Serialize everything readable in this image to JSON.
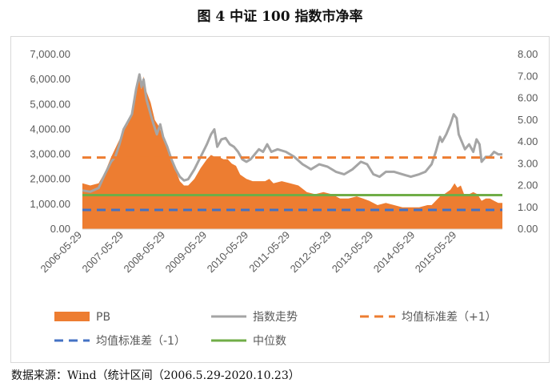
{
  "title": "图 4  中证 100 指数市净率",
  "source": "数据来源：Wind（统计区间（2006.5.29-2020.10.23）",
  "chart_data": {
    "type": "line",
    "x_tick_labels": [
      "2006-05-29",
      "2007-05-29",
      "2008-05-29",
      "2009-05-29",
      "2010-05-29",
      "2011-05-29",
      "2012-05-29",
      "2013-05-29",
      "2014-05-29",
      "2015-05-29"
    ],
    "x_range": [
      2006.41,
      2016.5
    ],
    "y_left": {
      "range": [
        0,
        7000
      ],
      "ticks": [
        "0.00",
        "1,000.00",
        "2,000.00",
        "3,000.00",
        "4,000.00",
        "5,000.00",
        "6,000.00",
        "7,000.00"
      ]
    },
    "y_right": {
      "range": [
        0,
        8
      ],
      "ticks": [
        "0.00",
        "1.00",
        "2.00",
        "3.00",
        "4.00",
        "5.00",
        "6.00",
        "7.00",
        "8.00"
      ]
    },
    "grid": false,
    "legend_position": "bottom",
    "series": [
      {
        "name": "PB",
        "type": "area",
        "axis": "right",
        "color": "#ED7D31",
        "points": [
          [
            2006.41,
            2.1
          ],
          [
            2006.6,
            2.0
          ],
          [
            2006.8,
            2.1
          ],
          [
            2006.95,
            2.6
          ],
          [
            2007.1,
            3.3
          ],
          [
            2007.25,
            3.9
          ],
          [
            2007.4,
            4.5
          ],
          [
            2007.5,
            4.8
          ],
          [
            2007.6,
            5.4
          ],
          [
            2007.7,
            6.3
          ],
          [
            2007.78,
            7.1
          ],
          [
            2007.83,
            6.4
          ],
          [
            2007.88,
            7.0
          ],
          [
            2007.95,
            6.3
          ],
          [
            2008.05,
            5.8
          ],
          [
            2008.15,
            5.0
          ],
          [
            2008.25,
            4.7
          ],
          [
            2008.35,
            4.2
          ],
          [
            2008.45,
            3.8
          ],
          [
            2008.55,
            3.2
          ],
          [
            2008.65,
            2.7
          ],
          [
            2008.75,
            2.2
          ],
          [
            2008.85,
            2.0
          ],
          [
            2008.95,
            2.0
          ],
          [
            2009.1,
            2.3
          ],
          [
            2009.25,
            2.8
          ],
          [
            2009.4,
            3.2
          ],
          [
            2009.5,
            3.4
          ],
          [
            2009.6,
            3.3
          ],
          [
            2009.7,
            3.3
          ],
          [
            2009.8,
            3.2
          ],
          [
            2009.9,
            3.2
          ],
          [
            2010.0,
            3.0
          ],
          [
            2010.1,
            2.9
          ],
          [
            2010.2,
            2.5
          ],
          [
            2010.35,
            2.3
          ],
          [
            2010.5,
            2.2
          ],
          [
            2010.65,
            2.2
          ],
          [
            2010.8,
            2.2
          ],
          [
            2010.9,
            2.3
          ],
          [
            2011.0,
            2.1
          ],
          [
            2011.2,
            2.2
          ],
          [
            2011.4,
            2.1
          ],
          [
            2011.6,
            2.0
          ],
          [
            2011.8,
            1.7
          ],
          [
            2012.0,
            1.6
          ],
          [
            2012.2,
            1.7
          ],
          [
            2012.4,
            1.6
          ],
          [
            2012.6,
            1.4
          ],
          [
            2012.8,
            1.4
          ],
          [
            2013.0,
            1.5
          ],
          [
            2013.15,
            1.4
          ],
          [
            2013.3,
            1.3
          ],
          [
            2013.5,
            1.1
          ],
          [
            2013.7,
            1.2
          ],
          [
            2013.9,
            1.1
          ],
          [
            2014.1,
            1.0
          ],
          [
            2014.3,
            1.0
          ],
          [
            2014.5,
            1.0
          ],
          [
            2014.7,
            1.1
          ],
          [
            2014.8,
            1.1
          ],
          [
            2014.9,
            1.3
          ],
          [
            2015.0,
            1.5
          ],
          [
            2015.1,
            1.6
          ],
          [
            2015.25,
            1.8
          ],
          [
            2015.35,
            2.1
          ],
          [
            2015.42,
            1.9
          ],
          [
            2015.5,
            2.0
          ],
          [
            2015.58,
            1.6
          ],
          [
            2015.7,
            1.6
          ],
          [
            2015.8,
            1.7
          ],
          [
            2015.9,
            1.6
          ],
          [
            2016.0,
            1.3
          ],
          [
            2016.1,
            1.4
          ],
          [
            2016.2,
            1.4
          ],
          [
            2016.3,
            1.3
          ],
          [
            2016.4,
            1.2
          ],
          [
            2016.5,
            1.2
          ]
        ]
      },
      {
        "name": "指数走势",
        "type": "line",
        "axis": "left",
        "color": "#A5A5A5",
        "points": [
          [
            2006.41,
            1550
          ],
          [
            2006.6,
            1500
          ],
          [
            2006.8,
            1650
          ],
          [
            2006.95,
            2200
          ],
          [
            2007.1,
            2700
          ],
          [
            2007.2,
            2900
          ],
          [
            2007.3,
            3400
          ],
          [
            2007.4,
            4000
          ],
          [
            2007.5,
            4300
          ],
          [
            2007.6,
            4600
          ],
          [
            2007.7,
            5600
          ],
          [
            2007.78,
            6200
          ],
          [
            2007.83,
            5700
          ],
          [
            2007.88,
            6000
          ],
          [
            2007.95,
            5200
          ],
          [
            2008.05,
            4600
          ],
          [
            2008.12,
            4200
          ],
          [
            2008.2,
            3800
          ],
          [
            2008.28,
            4200
          ],
          [
            2008.35,
            3700
          ],
          [
            2008.45,
            3300
          ],
          [
            2008.55,
            2800
          ],
          [
            2008.65,
            2400
          ],
          [
            2008.75,
            2100
          ],
          [
            2008.85,
            1950
          ],
          [
            2008.95,
            2000
          ],
          [
            2009.1,
            2400
          ],
          [
            2009.25,
            2900
          ],
          [
            2009.4,
            3400
          ],
          [
            2009.5,
            3800
          ],
          [
            2009.58,
            4000
          ],
          [
            2009.65,
            3300
          ],
          [
            2009.75,
            3600
          ],
          [
            2009.85,
            3650
          ],
          [
            2009.95,
            3400
          ],
          [
            2010.05,
            3300
          ],
          [
            2010.15,
            3100
          ],
          [
            2010.25,
            2800
          ],
          [
            2010.35,
            2700
          ],
          [
            2010.45,
            2800
          ],
          [
            2010.55,
            3000
          ],
          [
            2010.65,
            3200
          ],
          [
            2010.75,
            3100
          ],
          [
            2010.85,
            3400
          ],
          [
            2010.95,
            3100
          ],
          [
            2011.1,
            3200
          ],
          [
            2011.3,
            3100
          ],
          [
            2011.5,
            2900
          ],
          [
            2011.7,
            2600
          ],
          [
            2011.9,
            2400
          ],
          [
            2012.1,
            2600
          ],
          [
            2012.3,
            2500
          ],
          [
            2012.5,
            2300
          ],
          [
            2012.7,
            2200
          ],
          [
            2012.9,
            2400
          ],
          [
            2013.1,
            2700
          ],
          [
            2013.25,
            2600
          ],
          [
            2013.4,
            2200
          ],
          [
            2013.55,
            2100
          ],
          [
            2013.7,
            2300
          ],
          [
            2013.9,
            2300
          ],
          [
            2014.1,
            2200
          ],
          [
            2014.3,
            2100
          ],
          [
            2014.5,
            2200
          ],
          [
            2014.65,
            2300
          ],
          [
            2014.8,
            2600
          ],
          [
            2014.9,
            3100
          ],
          [
            2015.0,
            3700
          ],
          [
            2015.05,
            3500
          ],
          [
            2015.15,
            3800
          ],
          [
            2015.25,
            4200
          ],
          [
            2015.33,
            4600
          ],
          [
            2015.4,
            4450
          ],
          [
            2015.45,
            3800
          ],
          [
            2015.55,
            3400
          ],
          [
            2015.6,
            3200
          ],
          [
            2015.7,
            3400
          ],
          [
            2015.8,
            3100
          ],
          [
            2015.88,
            3600
          ],
          [
            2015.95,
            3400
          ],
          [
            2016.0,
            2700
          ],
          [
            2016.1,
            2900
          ],
          [
            2016.2,
            2900
          ],
          [
            2016.3,
            3100
          ],
          [
            2016.4,
            3000
          ],
          [
            2016.5,
            3000
          ]
        ]
      },
      {
        "name": "均值标准差（+1）",
        "type": "hline",
        "axis": "right",
        "value": 3.28,
        "color": "#ED7D31",
        "dash": true
      },
      {
        "name": "均值标准差（-1）",
        "type": "hline",
        "axis": "right",
        "value": 0.88,
        "color": "#4472C4",
        "dash": true
      },
      {
        "name": "中位数",
        "type": "hline",
        "axis": "right",
        "value": 1.56,
        "color": "#70AD47",
        "dash": false
      }
    ],
    "legend_labels": [
      "PB",
      "指数走势",
      "均值标准差（+1）",
      "均值标准差（-1）",
      "中位数"
    ]
  }
}
